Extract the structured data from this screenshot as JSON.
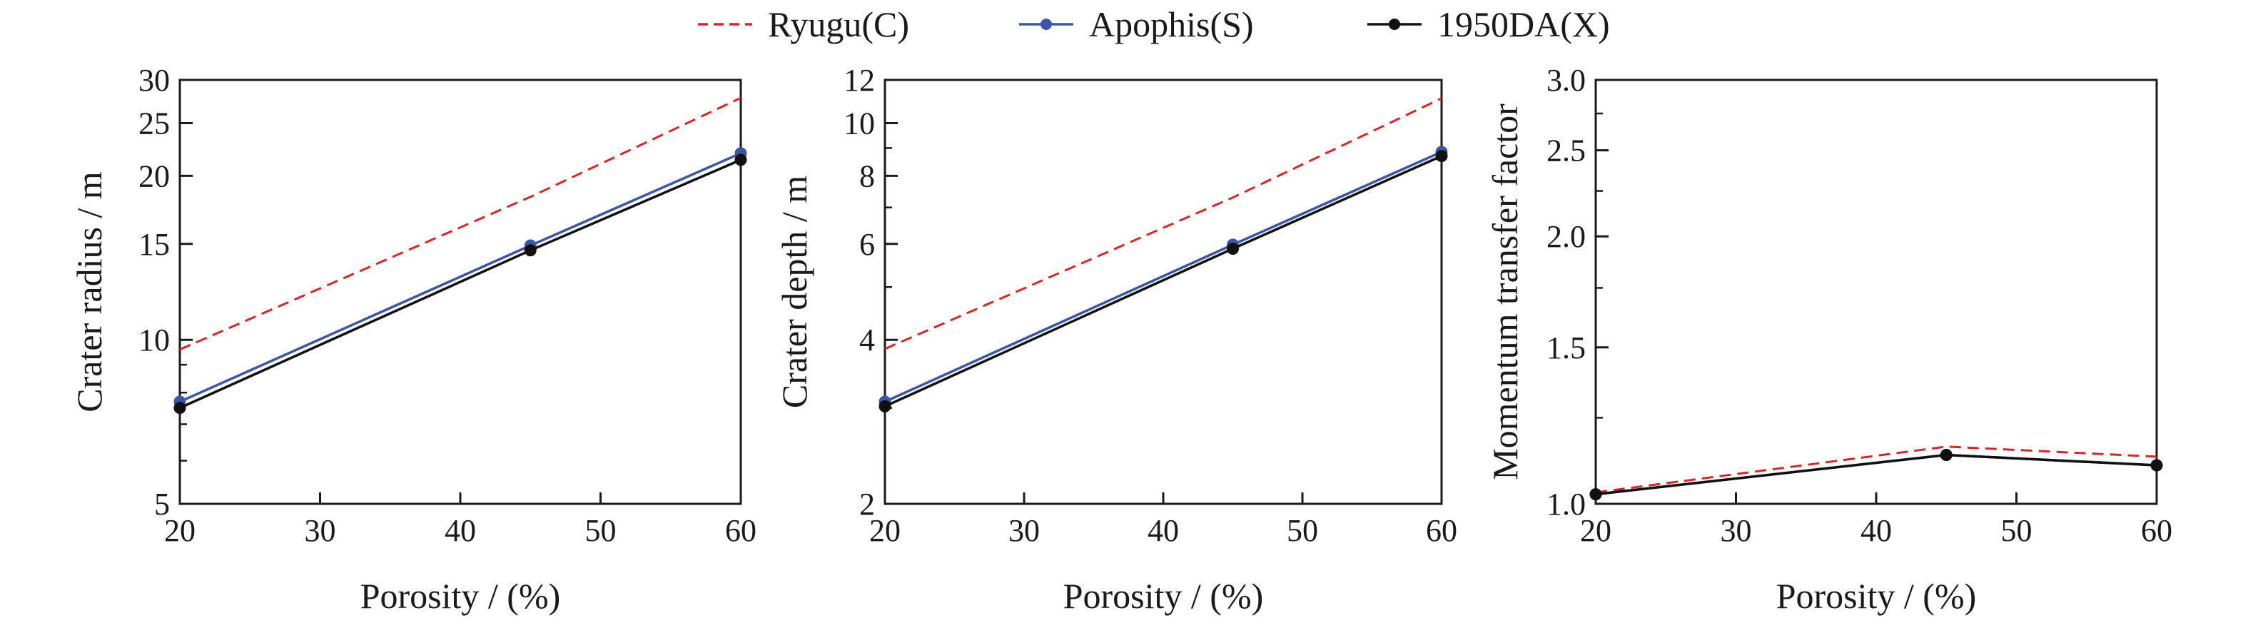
{
  "chart_data": [
    {
      "type": "line",
      "xlabel": "Porosity / (%)",
      "ylabel": "Crater radius / m",
      "x_scale": "linear",
      "y_scale": "log",
      "xlim": [
        20,
        60
      ],
      "ylim": [
        5,
        30
      ],
      "xticks": [
        20,
        30,
        40,
        50,
        60
      ],
      "yticks_labeled": [
        5,
        10,
        15,
        20,
        25,
        30
      ],
      "yticks_minor": [
        6,
        7,
        8,
        9
      ],
      "grid": false,
      "x": [
        20,
        45,
        60
      ],
      "series": [
        {
          "name": "Ryugu(C)",
          "values": [
            9.6,
            18.3,
            27.8
          ]
        },
        {
          "name": "Apophis(S)",
          "values": [
            7.7,
            14.9,
            22.0
          ]
        },
        {
          "name": "1950DA(X)",
          "values": [
            7.5,
            14.6,
            21.4
          ]
        }
      ]
    },
    {
      "type": "line",
      "xlabel": "Porosity / (%)",
      "ylabel": "Crater depth / m",
      "x_scale": "linear",
      "y_scale": "log",
      "xlim": [
        20,
        60
      ],
      "ylim": [
        2,
        12
      ],
      "xticks": [
        20,
        30,
        40,
        50,
        60
      ],
      "yticks_labeled": [
        2,
        4,
        6,
        8,
        10,
        12
      ],
      "yticks_minor": [
        3,
        5,
        7,
        9
      ],
      "grid": false,
      "x": [
        20,
        45,
        60
      ],
      "series": [
        {
          "name": "Ryugu(C)",
          "values": [
            3.85,
            7.3,
            11.1
          ]
        },
        {
          "name": "Apophis(S)",
          "values": [
            3.08,
            5.98,
            8.85
          ]
        },
        {
          "name": "1950DA(X)",
          "values": [
            3.02,
            5.88,
            8.7
          ]
        }
      ]
    },
    {
      "type": "line",
      "xlabel": "Porosity / (%)",
      "ylabel": "Momentum transfer factor",
      "x_scale": "linear",
      "y_scale": "log",
      "xlim": [
        20,
        60
      ],
      "ylim": [
        1.0,
        3.0
      ],
      "xticks": [
        20,
        30,
        40,
        50,
        60
      ],
      "yticks_labeled": [
        1.0,
        1.5,
        2.0,
        2.5,
        3.0
      ],
      "yticks_label_text": [
        "1.0",
        "1.5",
        "2.0",
        "2.5",
        "3.0"
      ],
      "yticks_minor": [
        1.25,
        1.75,
        2.25,
        2.75
      ],
      "grid": false,
      "x": [
        20,
        45,
        60
      ],
      "series": [
        {
          "name": "Ryugu(C)",
          "values": [
            1.03,
            1.16,
            1.13
          ]
        },
        {
          "name": "Apophis(S)",
          "values": [
            1.025,
            1.135,
            1.105
          ]
        },
        {
          "name": "1950DA(X)",
          "values": [
            1.025,
            1.135,
            1.105
          ]
        }
      ]
    }
  ],
  "legend": {
    "placement": "top-center",
    "entries": [
      {
        "name": "Ryugu(C)",
        "color": "#d62728",
        "line": "dashed",
        "marker": "none"
      },
      {
        "name": "Apophis(S)",
        "color": "#3a56a5",
        "line": "solid",
        "marker": "circle"
      },
      {
        "name": "1950DA(X)",
        "color": "#111111",
        "line": "solid",
        "marker": "circle"
      }
    ]
  },
  "series_styles": [
    {
      "color": "#d62728",
      "dash": true,
      "marker": false
    },
    {
      "color": "#3a56a5",
      "dash": false,
      "marker": true
    },
    {
      "color": "#111111",
      "dash": false,
      "marker": true
    }
  ]
}
